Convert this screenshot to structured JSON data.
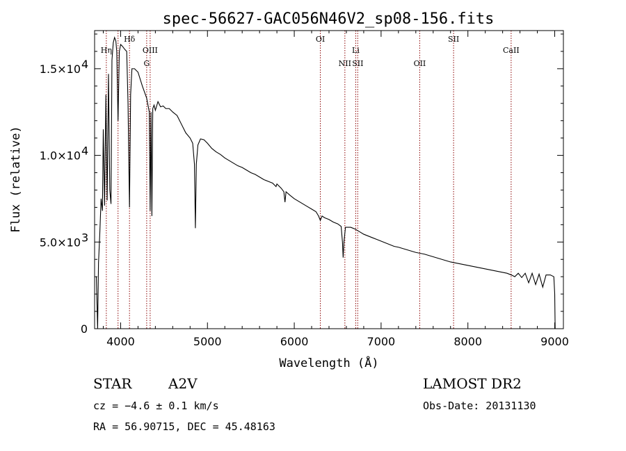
{
  "chart_data": {
    "type": "line",
    "title": "spec-56627-GAC056N46V2_sp08-156.fits",
    "xlabel": "Wavelength (Å)",
    "ylabel": "Flux (relative)",
    "xlim": [
      3700,
      9100
    ],
    "ylim": [
      0,
      17200
    ],
    "x_ticks": [
      {
        "value": 4000,
        "label": "4000"
      },
      {
        "value": 5000,
        "label": "5000"
      },
      {
        "value": 6000,
        "label": "6000"
      },
      {
        "value": 7000,
        "label": "7000"
      },
      {
        "value": 8000,
        "label": "8000"
      },
      {
        "value": 9000,
        "label": "9000"
      }
    ],
    "y_ticks": [
      {
        "value": 0,
        "mantissa": "0",
        "exponent": ""
      },
      {
        "value": 5000,
        "mantissa": "5.0×10",
        "exponent": "3"
      },
      {
        "value": 10000,
        "mantissa": "1.0×10",
        "exponent": "4"
      },
      {
        "value": 15000,
        "mantissa": "1.5×10",
        "exponent": "4"
      }
    ],
    "grid": false,
    "series": [
      {
        "color": "#000000",
        "points": [
          [
            3720,
            3000
          ],
          [
            3735,
            0
          ],
          [
            3745,
            3800
          ],
          [
            3760,
            5500
          ],
          [
            3775,
            7500
          ],
          [
            3790,
            6800
          ],
          [
            3800,
            11500
          ],
          [
            3815,
            7100
          ],
          [
            3830,
            13500
          ],
          [
            3845,
            7400
          ],
          [
            3860,
            14700
          ],
          [
            3875,
            8000
          ],
          [
            3889,
            7200
          ],
          [
            3900,
            15500
          ],
          [
            3915,
            16500
          ],
          [
            3930,
            16800
          ],
          [
            3945,
            16600
          ],
          [
            3955,
            16000
          ],
          [
            3970,
            12000
          ],
          [
            3985,
            16000
          ],
          [
            4000,
            16400
          ],
          [
            4020,
            16300
          ],
          [
            4050,
            16100
          ],
          [
            4070,
            16000
          ],
          [
            4085,
            13000
          ],
          [
            4102,
            7000
          ],
          [
            4115,
            13500
          ],
          [
            4130,
            15000
          ],
          [
            4160,
            15000
          ],
          [
            4200,
            14800
          ],
          [
            4250,
            14000
          ],
          [
            4300,
            13300
          ],
          [
            4330,
            12500
          ],
          [
            4340,
            6800
          ],
          [
            4350,
            12500
          ],
          [
            4360,
            6500
          ],
          [
            4370,
            12700
          ],
          [
            4385,
            12900
          ],
          [
            4400,
            12600
          ],
          [
            4430,
            13100
          ],
          [
            4460,
            12800
          ],
          [
            4490,
            12850
          ],
          [
            4520,
            12700
          ],
          [
            4560,
            12700
          ],
          [
            4600,
            12500
          ],
          [
            4650,
            12300
          ],
          [
            4700,
            11800
          ],
          [
            4750,
            11300
          ],
          [
            4800,
            11000
          ],
          [
            4830,
            10700
          ],
          [
            4850,
            9500
          ],
          [
            4861,
            5800
          ],
          [
            4872,
            9500
          ],
          [
            4890,
            10600
          ],
          [
            4920,
            10950
          ],
          [
            4960,
            10900
          ],
          [
            5000,
            10700
          ],
          [
            5050,
            10400
          ],
          [
            5100,
            10200
          ],
          [
            5150,
            10050
          ],
          [
            5200,
            9850
          ],
          [
            5250,
            9700
          ],
          [
            5300,
            9550
          ],
          [
            5350,
            9400
          ],
          [
            5400,
            9300
          ],
          [
            5450,
            9150
          ],
          [
            5500,
            9000
          ],
          [
            5550,
            8900
          ],
          [
            5600,
            8750
          ],
          [
            5650,
            8600
          ],
          [
            5700,
            8500
          ],
          [
            5750,
            8400
          ],
          [
            5790,
            8200
          ],
          [
            5800,
            8350
          ],
          [
            5850,
            8100
          ],
          [
            5880,
            7900
          ],
          [
            5893,
            7300
          ],
          [
            5905,
            7900
          ],
          [
            5950,
            7700
          ],
          [
            6000,
            7500
          ],
          [
            6050,
            7350
          ],
          [
            6100,
            7200
          ],
          [
            6150,
            7050
          ],
          [
            6200,
            6900
          ],
          [
            6250,
            6750
          ],
          [
            6280,
            6500
          ],
          [
            6300,
            6250
          ],
          [
            6320,
            6500
          ],
          [
            6350,
            6400
          ],
          [
            6400,
            6300
          ],
          [
            6450,
            6150
          ],
          [
            6500,
            6050
          ],
          [
            6540,
            5900
          ],
          [
            6555,
            5000
          ],
          [
            6563,
            4100
          ],
          [
            6572,
            5000
          ],
          [
            6590,
            5850
          ],
          [
            6650,
            5850
          ],
          [
            6700,
            5750
          ],
          [
            6750,
            5600
          ],
          [
            6800,
            5450
          ],
          [
            6850,
            5350
          ],
          [
            6900,
            5250
          ],
          [
            6950,
            5150
          ],
          [
            7000,
            5050
          ],
          [
            7050,
            4950
          ],
          [
            7100,
            4850
          ],
          [
            7150,
            4750
          ],
          [
            7200,
            4700
          ],
          [
            7300,
            4550
          ],
          [
            7400,
            4400
          ],
          [
            7500,
            4300
          ],
          [
            7600,
            4150
          ],
          [
            7700,
            4000
          ],
          [
            7800,
            3850
          ],
          [
            7900,
            3750
          ],
          [
            8000,
            3650
          ],
          [
            8100,
            3550
          ],
          [
            8200,
            3450
          ],
          [
            8300,
            3350
          ],
          [
            8400,
            3250
          ],
          [
            8450,
            3200
          ],
          [
            8500,
            3100
          ],
          [
            8540,
            3000
          ],
          [
            8580,
            3200
          ],
          [
            8620,
            2950
          ],
          [
            8660,
            3200
          ],
          [
            8700,
            2650
          ],
          [
            8740,
            3200
          ],
          [
            8780,
            2550
          ],
          [
            8820,
            3150
          ],
          [
            8862,
            2400
          ],
          [
            8900,
            3100
          ],
          [
            8950,
            3100
          ],
          [
            8990,
            3000
          ],
          [
            9000,
            2000
          ],
          [
            9005,
            0
          ]
        ]
      }
    ],
    "lines": [
      {
        "x": 3835,
        "label": "Hη",
        "label_row": 2
      },
      {
        "x": 3970,
        "label": "",
        "label_row": 0
      },
      {
        "x": 4102,
        "label": "Hδ",
        "label_row": 1
      },
      {
        "x": 4300,
        "label": "G",
        "label_row": 4
      },
      {
        "x": 4340,
        "label": "OIII",
        "label_row": 2
      },
      {
        "x": 6300,
        "label": "OI",
        "label_row": 1
      },
      {
        "x": 6583,
        "label": "NII",
        "label_row": 4
      },
      {
        "x": 6708,
        "label": "Li",
        "label_row": 2
      },
      {
        "x": 6731,
        "label": "SII",
        "label_row": 4
      },
      {
        "x": 7445,
        "label": "OII",
        "label_row": 4
      },
      {
        "x": 7835,
        "label": "SII",
        "label_row": 1
      },
      {
        "x": 8498,
        "label": "CaII",
        "label_row": 2
      }
    ],
    "line_color": "#8b0000"
  },
  "info": {
    "object_class": "STAR",
    "subclass": "A2V",
    "survey": "LAMOST DR2",
    "cz": "cz = −4.6 ± 0.1 km/s",
    "obs_date": "Obs-Date: 20131130",
    "radec": "RA =  56.90715, DEC =  45.48163"
  }
}
